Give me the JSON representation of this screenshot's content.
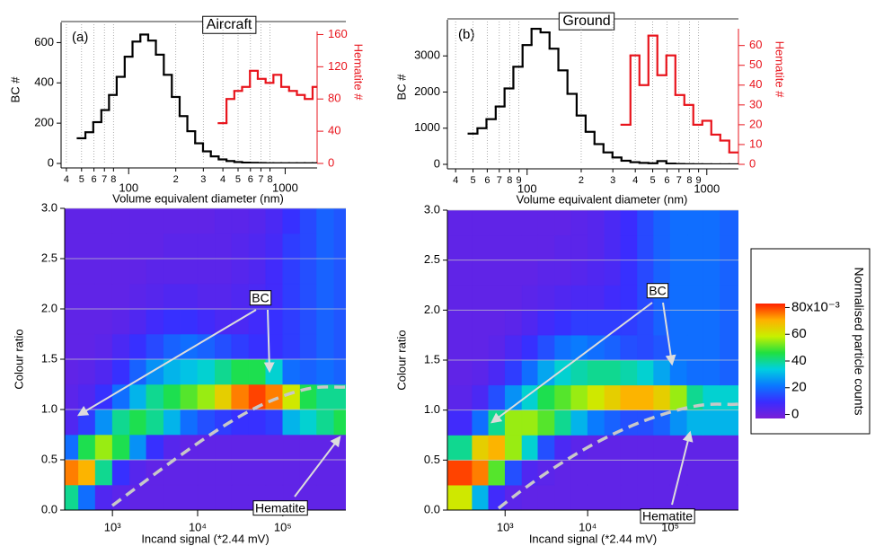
{
  "chart_data": [
    {
      "type": "step",
      "title": "Aircraft",
      "panel_label": "(a)",
      "xlabel": "Volume equivalent diameter (nm)",
      "xscale": "log",
      "xlim": [
        37,
        1600
      ],
      "ylim": [
        0,
        700
      ],
      "y2lim": [
        0,
        175
      ],
      "xticks": [
        {
          "value": 40,
          "label": "4"
        },
        {
          "value": 50,
          "label": "5"
        },
        {
          "value": 60,
          "label": "6"
        },
        {
          "value": 70,
          "label": "7"
        },
        {
          "value": 80,
          "label": "8"
        },
        100,
        {
          "value": 200,
          "label": "2"
        },
        {
          "value": 300,
          "label": "3"
        },
        {
          "value": 400,
          "label": "4"
        },
        {
          "value": 500,
          "label": "5"
        },
        {
          "value": 600,
          "label": "6"
        },
        {
          "value": 700,
          "label": "7"
        },
        {
          "value": 800,
          "label": "8"
        },
        1000
      ],
      "yticks": [
        0,
        200,
        400,
        600
      ],
      "y2ticks": [
        0,
        40,
        80,
        120,
        160
      ],
      "x": [
        50,
        56,
        63,
        71,
        79,
        89,
        100,
        112,
        126,
        141,
        158,
        178,
        200,
        224,
        251,
        282,
        316,
        355,
        398,
        447,
        501,
        562,
        631,
        708,
        794,
        891,
        1000,
        1122,
        1259,
        1413,
        1585
      ],
      "series": [
        {
          "name": "BC #",
          "color": "#000000",
          "axis": "y",
          "values": [
            125,
            155,
            205,
            265,
            340,
            430,
            530,
            605,
            640,
            610,
            540,
            440,
            330,
            235,
            160,
            100,
            60,
            35,
            20,
            12,
            7,
            4,
            3,
            2,
            1,
            1,
            1,
            1,
            1,
            1,
            1
          ]
        },
        {
          "name": "Hematite #",
          "color": "#e8141c",
          "axis": "y2",
          "values": [
            null,
            null,
            null,
            null,
            null,
            null,
            null,
            null,
            null,
            null,
            null,
            null,
            null,
            null,
            null,
            null,
            null,
            null,
            50,
            80,
            90,
            95,
            115,
            105,
            100,
            110,
            95,
            90,
            85,
            80,
            95
          ]
        }
      ]
    },
    {
      "type": "step",
      "title": "Ground",
      "panel_label": "(b)",
      "xlabel": "Volume equivalent diameter (nm)",
      "xscale": "log",
      "xlim": [
        36,
        1500
      ],
      "ylim": [
        0,
        4000
      ],
      "y2lim": [
        0,
        73
      ],
      "xticks": [
        {
          "value": 40,
          "label": "4"
        },
        {
          "value": 50,
          "label": "5"
        },
        {
          "value": 60,
          "label": "6"
        },
        {
          "value": 70,
          "label": "7"
        },
        {
          "value": 80,
          "label": "8"
        },
        {
          "value": 90,
          "label": "9"
        },
        100,
        {
          "value": 200,
          "label": "2"
        },
        {
          "value": 300,
          "label": "3"
        },
        {
          "value": 400,
          "label": "4"
        },
        {
          "value": 500,
          "label": "5"
        },
        {
          "value": 600,
          "label": "6"
        },
        {
          "value": 700,
          "label": "7"
        },
        {
          "value": 800,
          "label": "8"
        },
        {
          "value": 900,
          "label": "9"
        },
        1000
      ],
      "yticks": [
        0,
        1000,
        2000,
        3000
      ],
      "y2ticks": [
        0,
        10,
        20,
        30,
        40,
        50,
        60
      ],
      "x": [
        50,
        56,
        63,
        71,
        79,
        89,
        100,
        112,
        126,
        141,
        158,
        178,
        200,
        224,
        251,
        282,
        316,
        355,
        398,
        447,
        501,
        562,
        631,
        708,
        794,
        891,
        1000,
        1122,
        1259,
        1413
      ],
      "series": [
        {
          "name": "BC #",
          "color": "#000000",
          "axis": "y",
          "values": [
            850,
            1000,
            1250,
            1600,
            2100,
            2700,
            3300,
            3750,
            3650,
            3200,
            2600,
            1950,
            1350,
            900,
            560,
            330,
            190,
            100,
            60,
            40,
            30,
            90,
            20,
            10,
            5,
            3,
            2,
            1,
            1,
            1
          ]
        },
        {
          "name": "Hematite #",
          "color": "#e8141c",
          "axis": "y2",
          "values": [
            null,
            null,
            null,
            null,
            null,
            null,
            null,
            null,
            null,
            null,
            null,
            null,
            null,
            null,
            null,
            null,
            null,
            20,
            55,
            40,
            65,
            45,
            55,
            35,
            30,
            20,
            22,
            15,
            12,
            6
          ]
        }
      ]
    },
    {
      "type": "heatmap",
      "xlabel": "Incand signal (*2.44 mV)",
      "ylabel": "Colour ratio",
      "xscale": "log",
      "xlim": [
        275,
        550000
      ],
      "ylim": [
        0,
        3
      ],
      "xticks": [
        {
          "value": 1000,
          "label": "10³"
        },
        {
          "value": 10000,
          "label": "10⁴"
        },
        {
          "value": 100000,
          "label": "10⁵"
        }
      ],
      "yticks": [
        {
          "value": 0,
          "label": "0.0"
        },
        0.5,
        {
          "value": 1,
          "label": "1.0"
        },
        1.5,
        {
          "value": 2,
          "label": "2.0"
        },
        2.5,
        {
          "value": 3,
          "label": "3.0"
        }
      ],
      "grid": true,
      "annotations": [
        "BC",
        "Hematite"
      ],
      "x_edges": [
        250,
        400,
        630,
        1000,
        1600,
        2500,
        4000,
        6300,
        10000,
        16000,
        25000,
        40000,
        63000,
        100000,
        160000,
        250000,
        400000,
        630000
      ],
      "y_edges": [
        0,
        0.25,
        0.5,
        0.75,
        1,
        1.25,
        1.5,
        1.75,
        2,
        2.25,
        2.5,
        2.75,
        3
      ],
      "z": [
        [
          40,
          20,
          5,
          3,
          2,
          2,
          2,
          2,
          2,
          2,
          2,
          2,
          2,
          2,
          2,
          2,
          2
        ],
        [
          75,
          70,
          40,
          10,
          4,
          2,
          2,
          2,
          2,
          2,
          2,
          2,
          2,
          2,
          2,
          2,
          2
        ],
        [
          20,
          45,
          55,
          45,
          25,
          10,
          4,
          2,
          2,
          2,
          2,
          2,
          2,
          2,
          2,
          2,
          2
        ],
        [
          5,
          12,
          25,
          40,
          45,
          40,
          30,
          20,
          15,
          12,
          10,
          10,
          12,
          30,
          35,
          40,
          45
        ],
        [
          3,
          5,
          10,
          20,
          30,
          40,
          45,
          50,
          55,
          65,
          75,
          80,
          75,
          60,
          45,
          40,
          40
        ],
        [
          2,
          3,
          5,
          10,
          18,
          25,
          30,
          32,
          35,
          40,
          45,
          45,
          35,
          20,
          18,
          20,
          18
        ],
        [
          2,
          2,
          3,
          6,
          10,
          14,
          18,
          20,
          18,
          15,
          12,
          10,
          10,
          12,
          15,
          18,
          16
        ],
        [
          2,
          2,
          2,
          3,
          5,
          8,
          10,
          10,
          8,
          6,
          6,
          8,
          10,
          12,
          15,
          18,
          16
        ],
        [
          2,
          2,
          2,
          2,
          3,
          4,
          5,
          5,
          4,
          4,
          5,
          6,
          8,
          12,
          15,
          18,
          16
        ],
        [
          2,
          2,
          2,
          2,
          2,
          3,
          3,
          3,
          3,
          3,
          4,
          5,
          8,
          12,
          15,
          18,
          16
        ],
        [
          2,
          2,
          2,
          2,
          2,
          2,
          3,
          3,
          3,
          3,
          4,
          5,
          7,
          12,
          14,
          18,
          16
        ],
        [
          2,
          2,
          2,
          2,
          2,
          2,
          2,
          2,
          2,
          3,
          3,
          4,
          6,
          10,
          14,
          18,
          16
        ]
      ]
    },
    {
      "type": "heatmap",
      "xlabel": "Incand signal (*2.44 mV)",
      "ylabel": "Colour ratio",
      "xscale": "log",
      "xlim": [
        200,
        670000
      ],
      "ylim": [
        0,
        3
      ],
      "xticks": [
        {
          "value": 1000,
          "label": "10³"
        },
        {
          "value": 10000,
          "label": "10⁴"
        },
        {
          "value": 100000,
          "label": "10⁵"
        }
      ],
      "yticks": [
        {
          "value": 0,
          "label": "0.0"
        },
        0.5,
        {
          "value": 1,
          "label": "1.0"
        },
        1.5,
        {
          "value": 2,
          "label": "2.0"
        },
        2.5,
        {
          "value": 3,
          "label": "3.0"
        }
      ],
      "grid": true,
      "annotations": [
        "BC",
        "Hematite"
      ],
      "x_edges": [
        200,
        400,
        630,
        1000,
        1600,
        2500,
        4000,
        6300,
        10000,
        16000,
        25000,
        40000,
        63000,
        100000,
        160000,
        250000,
        400000,
        670000
      ],
      "y_edges": [
        0,
        0.25,
        0.5,
        0.75,
        1,
        1.25,
        1.5,
        1.75,
        2,
        2.25,
        2.5,
        2.75,
        3
      ],
      "z": [
        [
          60,
          30,
          8,
          3,
          2,
          2,
          2,
          2,
          2,
          2,
          2,
          2,
          2,
          2,
          2,
          2,
          2
        ],
        [
          80,
          75,
          50,
          15,
          5,
          3,
          2,
          2,
          2,
          2,
          2,
          2,
          2,
          2,
          2,
          2,
          2
        ],
        [
          40,
          65,
          70,
          55,
          35,
          15,
          6,
          3,
          2,
          2,
          2,
          2,
          2,
          2,
          2,
          2,
          2
        ],
        [
          8,
          20,
          40,
          55,
          55,
          50,
          40,
          30,
          22,
          18,
          15,
          15,
          18,
          25,
          30,
          30,
          30
        ],
        [
          3,
          6,
          15,
          25,
          35,
          45,
          50,
          55,
          60,
          65,
          70,
          70,
          65,
          55,
          40,
          35,
          35
        ],
        [
          2,
          3,
          6,
          12,
          20,
          28,
          35,
          38,
          40,
          40,
          38,
          35,
          28,
          22,
          20,
          20,
          18
        ],
        [
          2,
          2,
          3,
          6,
          10,
          15,
          20,
          22,
          20,
          18,
          15,
          14,
          16,
          20,
          20,
          20,
          18
        ],
        [
          2,
          2,
          2,
          3,
          5,
          8,
          10,
          12,
          12,
          12,
          12,
          14,
          18,
          20,
          20,
          20,
          18
        ],
        [
          2,
          2,
          2,
          2,
          3,
          4,
          5,
          6,
          6,
          8,
          10,
          14,
          18,
          20,
          20,
          20,
          18
        ],
        [
          2,
          2,
          2,
          2,
          2,
          3,
          3,
          4,
          5,
          6,
          10,
          14,
          18,
          20,
          20,
          20,
          18
        ],
        [
          2,
          2,
          2,
          2,
          2,
          2,
          3,
          3,
          4,
          6,
          9,
          14,
          18,
          20,
          20,
          20,
          18
        ],
        [
          2,
          2,
          2,
          2,
          2,
          2,
          2,
          3,
          4,
          6,
          9,
          14,
          18,
          20,
          20,
          20,
          18
        ]
      ]
    },
    {
      "type": "colorbar",
      "title": "Normalised particle counts",
      "zlim": [
        -3,
        83
      ],
      "ticks": [
        0,
        20,
        40,
        60,
        {
          "value": 80,
          "label": "80x10⁻³"
        }
      ],
      "colormap": [
        "#7a1fd6",
        "#3a2cff",
        "#0a78ff",
        "#00d0e0",
        "#20e040",
        "#c8f000",
        "#ffb000",
        "#ff2000"
      ]
    }
  ]
}
